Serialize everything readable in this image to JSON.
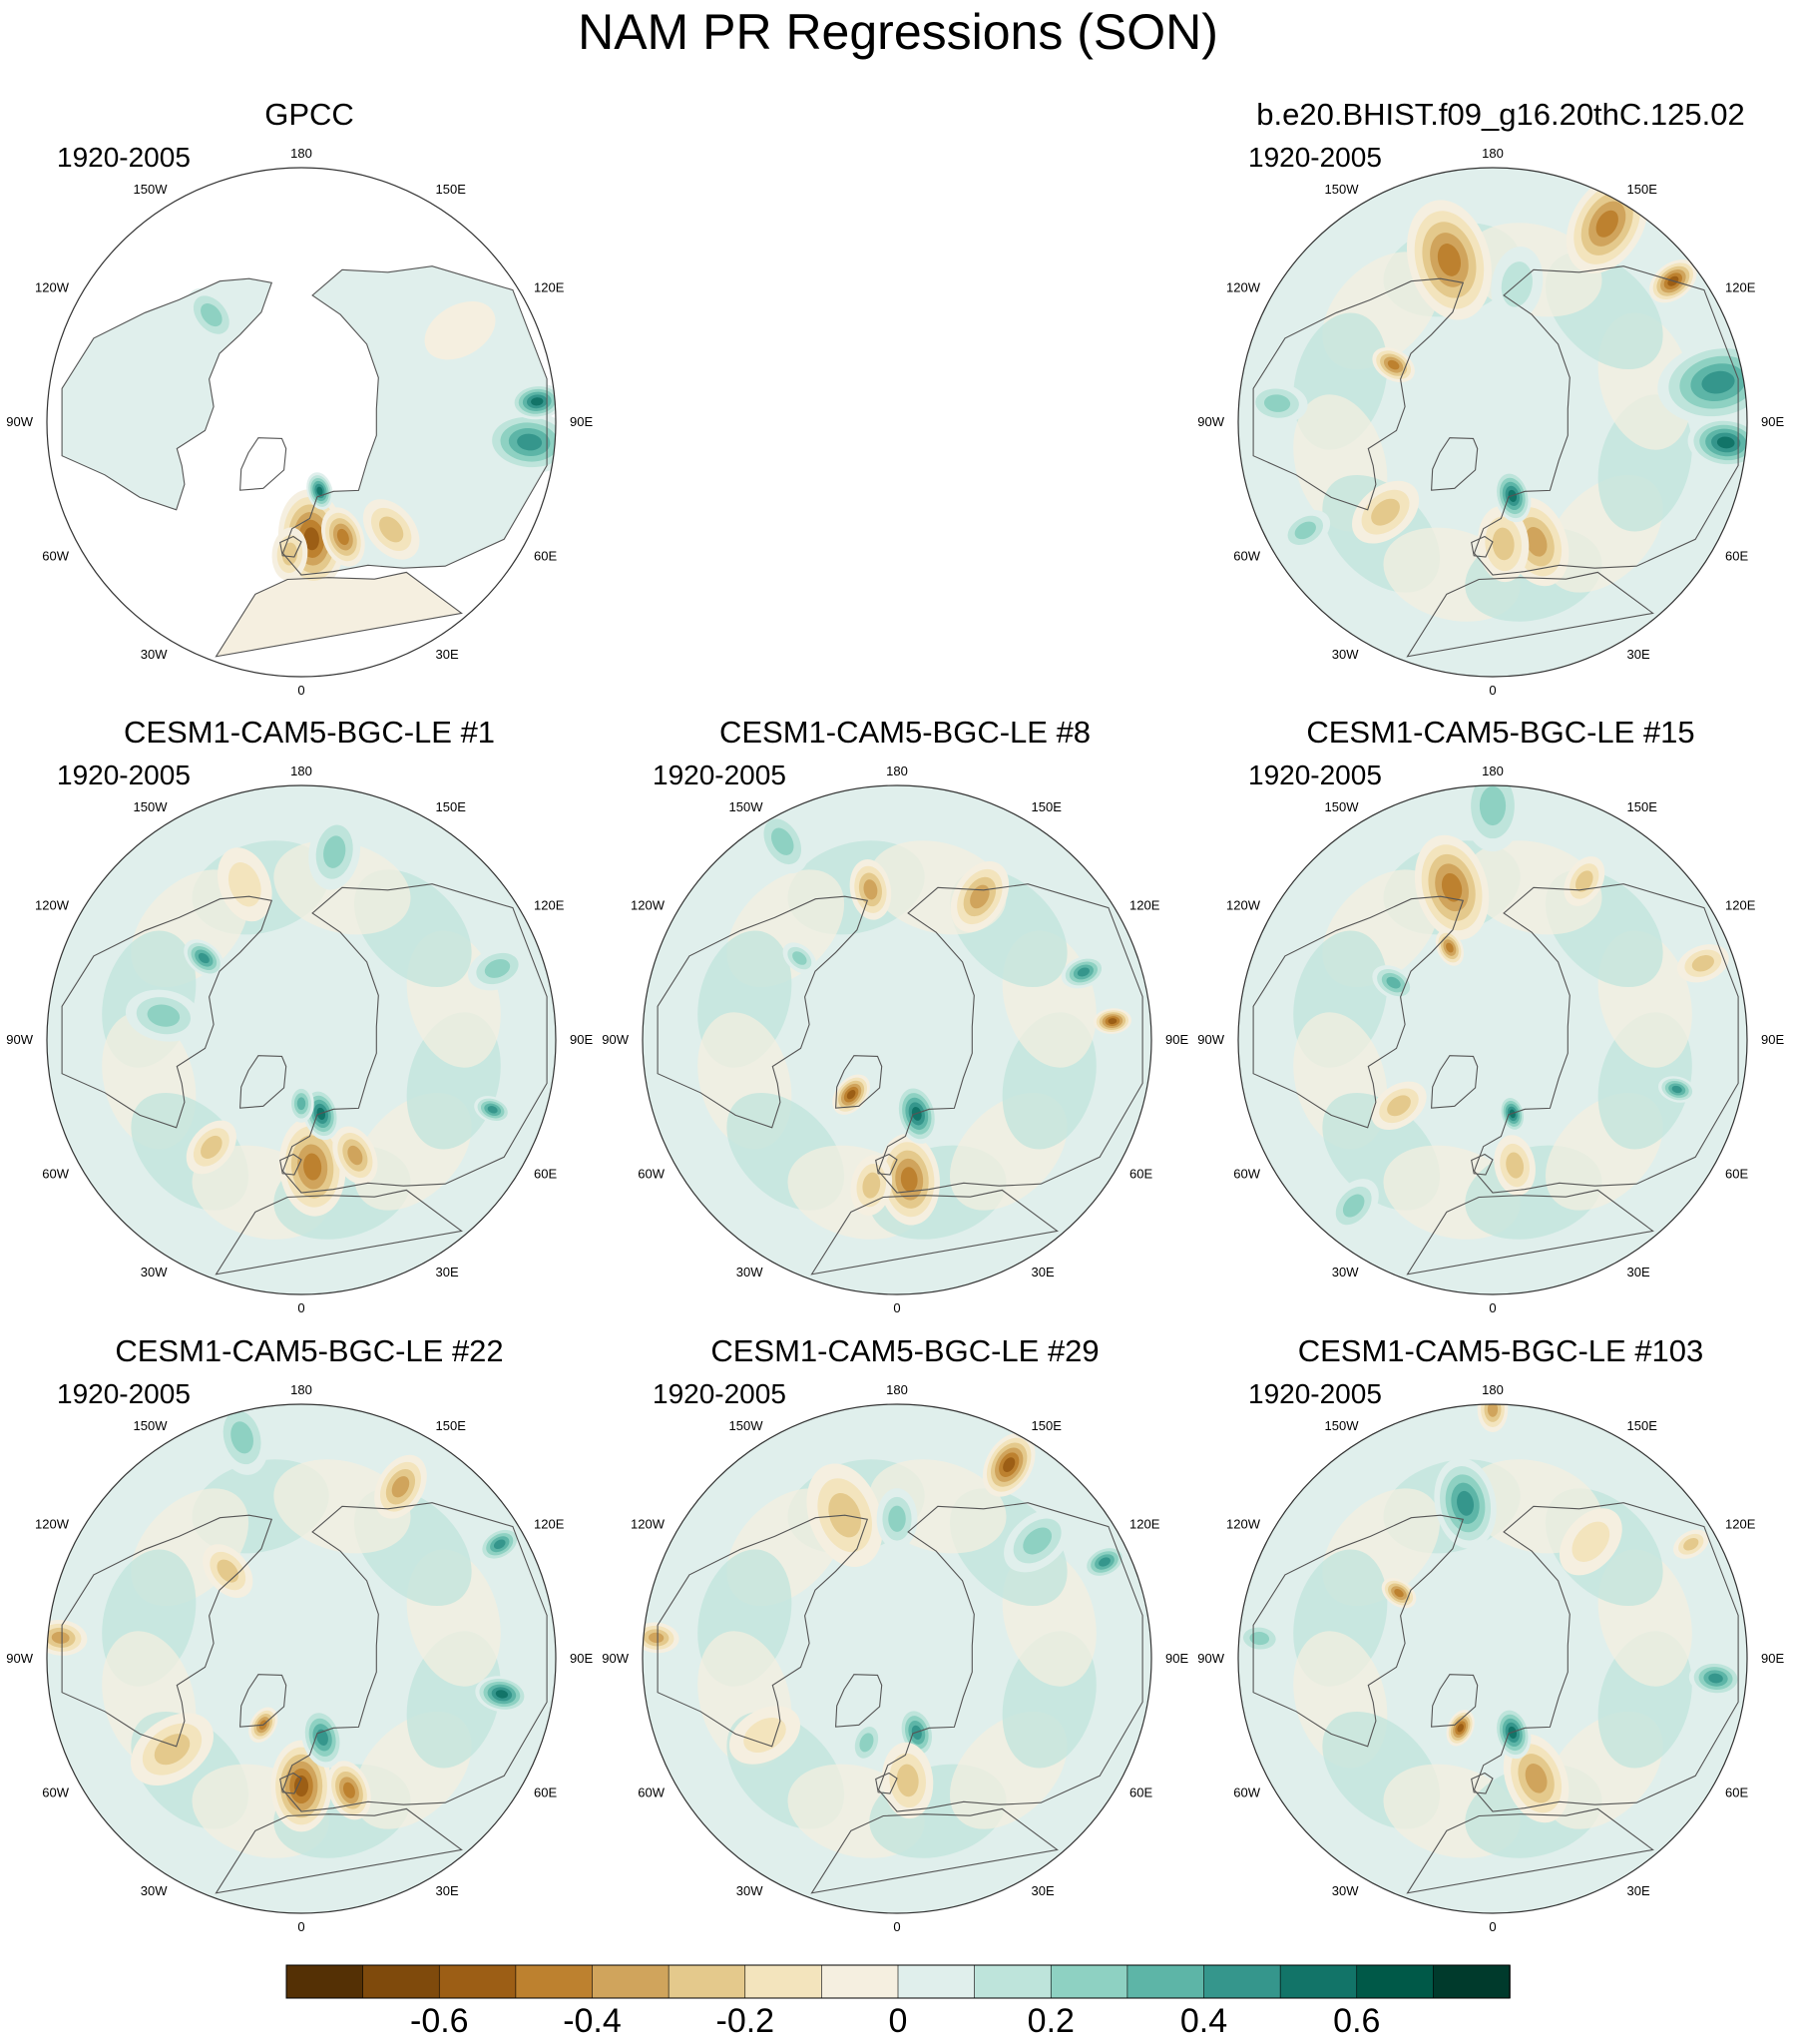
{
  "figure": {
    "title": "NAM PR Regressions (SON)"
  },
  "chart_data": {
    "type": "heatmap",
    "projection": "north-polar-stereographic",
    "grid": false,
    "legend_placement": "bottom",
    "longitude_labels": [
      "180",
      "150E",
      "120E",
      "90E",
      "60E",
      "30E",
      "0",
      "30W",
      "60W",
      "90W",
      "120W",
      "150W"
    ],
    "colorbar": {
      "levels": [
        -0.7,
        -0.6,
        -0.5,
        -0.4,
        -0.3,
        -0.2,
        -0.1,
        0,
        0.1,
        0.2,
        0.3,
        0.4,
        0.5,
        0.6,
        0.7
      ],
      "tick_labels": [
        "-0.6",
        "-0.4",
        "-0.2",
        "0",
        "0.2",
        "0.4",
        "0.6"
      ],
      "tick_values": [
        -0.6,
        -0.4,
        -0.2,
        0,
        0.2,
        0.4,
        0.6
      ],
      "colors": [
        "#543005",
        "#7f4a0c",
        "#9c5e15",
        "#bd812f",
        "#d0a45c",
        "#e4c98c",
        "#f3e4bd",
        "#f5efe0",
        "#e0efec",
        "#bee4db",
        "#8ed1c2",
        "#5db5a7",
        "#35968c",
        "#127468",
        "#005948",
        "#003a2c"
      ]
    },
    "panels": [
      {
        "id": "gpcc",
        "title": "GPCC",
        "period": "1920-2005",
        "col": 0,
        "row": 0,
        "land_only": true,
        "features": [
          {
            "lon": 5,
            "r": 0.46,
            "size": 0.13,
            "value": -0.55
          },
          {
            "lon": 20,
            "r": 0.48,
            "size": 0.08,
            "value": -0.45
          },
          {
            "lon": -5,
            "r": 0.52,
            "size": 0.07,
            "value": -0.35
          },
          {
            "lon": 15,
            "r": 0.28,
            "size": 0.05,
            "value": 0.6
          },
          {
            "lon": 85,
            "r": 0.9,
            "size": 0.12,
            "value": 0.45
          },
          {
            "lon": 95,
            "r": 0.93,
            "size": 0.07,
            "value": 0.6
          },
          {
            "lon": 40,
            "r": 0.55,
            "size": 0.09,
            "value": -0.25
          },
          {
            "lon": 120,
            "r": 0.72,
            "size": 0.1,
            "value": -0.15
          },
          {
            "lon": -100,
            "r": 0.5,
            "size": 0.1,
            "value": 0.15
          },
          {
            "lon": -140,
            "r": 0.55,
            "size": 0.08,
            "value": 0.25
          }
        ]
      },
      {
        "id": "b-e20",
        "title": "b.e20.BHIST.f09_g16.20thC.125.02",
        "period": "1920-2005",
        "col": 2,
        "row": 0,
        "features": [
          {
            "lon": -165,
            "r": 0.66,
            "size": 0.16,
            "value": -0.5
          },
          {
            "lon": 150,
            "r": 0.9,
            "size": 0.14,
            "value": -0.45
          },
          {
            "lon": 128,
            "r": 0.9,
            "size": 0.07,
            "value": -0.6
          },
          {
            "lon": 100,
            "r": 0.9,
            "size": 0.16,
            "value": 0.5
          },
          {
            "lon": 85,
            "r": 0.92,
            "size": 0.1,
            "value": 0.6
          },
          {
            "lon": 20,
            "r": 0.5,
            "size": 0.12,
            "value": -0.4
          },
          {
            "lon": 5,
            "r": 0.48,
            "size": 0.1,
            "value": -0.3
          },
          {
            "lon": 15,
            "r": 0.3,
            "size": 0.07,
            "value": 0.55
          },
          {
            "lon": -50,
            "r": 0.55,
            "size": 0.1,
            "value": -0.25
          },
          {
            "lon": -95,
            "r": 0.85,
            "size": 0.08,
            "value": 0.35
          },
          {
            "lon": -60,
            "r": 0.85,
            "size": 0.07,
            "value": 0.35
          },
          {
            "lon": 170,
            "r": 0.55,
            "size": 0.1,
            "value": 0.2
          },
          {
            "lon": -120,
            "r": 0.45,
            "size": 0.06,
            "value": -0.5
          }
        ]
      },
      {
        "id": "le-1",
        "title": "CESM1-CAM5-BGC-LE #1",
        "period": "1920-2005",
        "col": 0,
        "row": 1,
        "features": [
          {
            "lon": 5,
            "r": 0.5,
            "size": 0.13,
            "value": -0.5
          },
          {
            "lon": 25,
            "r": 0.5,
            "size": 0.08,
            "value": -0.4
          },
          {
            "lon": 15,
            "r": 0.3,
            "size": 0.07,
            "value": 0.55
          },
          {
            "lon": 0,
            "r": 0.25,
            "size": 0.05,
            "value": 0.4
          },
          {
            "lon": -100,
            "r": 0.55,
            "size": 0.1,
            "value": 0.25
          },
          {
            "lon": -130,
            "r": 0.5,
            "size": 0.06,
            "value": 0.45
          },
          {
            "lon": 170,
            "r": 0.75,
            "size": 0.1,
            "value": 0.25
          },
          {
            "lon": 110,
            "r": 0.82,
            "size": 0.08,
            "value": 0.3
          },
          {
            "lon": -40,
            "r": 0.55,
            "size": 0.08,
            "value": -0.25
          },
          {
            "lon": 70,
            "r": 0.8,
            "size": 0.05,
            "value": 0.45
          },
          {
            "lon": -160,
            "r": 0.65,
            "size": 0.1,
            "value": -0.2
          }
        ]
      },
      {
        "id": "le-8",
        "title": "CESM1-CAM5-BGC-LE #8",
        "period": "1920-2005",
        "col": 1,
        "row": 1,
        "features": [
          {
            "lon": 5,
            "r": 0.55,
            "size": 0.12,
            "value": -0.45
          },
          {
            "lon": -10,
            "r": 0.58,
            "size": 0.08,
            "value": -0.35
          },
          {
            "lon": 15,
            "r": 0.3,
            "size": 0.08,
            "value": 0.55
          },
          {
            "lon": -40,
            "r": 0.28,
            "size": 0.06,
            "value": -0.55
          },
          {
            "lon": -170,
            "r": 0.6,
            "size": 0.08,
            "value": -0.4
          },
          {
            "lon": 150,
            "r": 0.65,
            "size": 0.1,
            "value": -0.4
          },
          {
            "lon": 110,
            "r": 0.78,
            "size": 0.06,
            "value": 0.45
          },
          {
            "lon": 95,
            "r": 0.85,
            "size": 0.05,
            "value": -0.55
          },
          {
            "lon": -130,
            "r": 0.5,
            "size": 0.05,
            "value": 0.35
          },
          {
            "lon": -150,
            "r": 0.9,
            "size": 0.09,
            "value": 0.3
          }
        ]
      },
      {
        "id": "le-15",
        "title": "CESM1-CAM5-BGC-LE #15",
        "period": "1920-2005",
        "col": 2,
        "row": 1,
        "features": [
          {
            "lon": -165,
            "r": 0.62,
            "size": 0.14,
            "value": -0.45
          },
          {
            "lon": -155,
            "r": 0.4,
            "size": 0.05,
            "value": -0.5
          },
          {
            "lon": 180,
            "r": 0.92,
            "size": 0.12,
            "value": 0.3
          },
          {
            "lon": 150,
            "r": 0.72,
            "size": 0.07,
            "value": -0.3
          },
          {
            "lon": 110,
            "r": 0.88,
            "size": 0.07,
            "value": -0.35
          },
          {
            "lon": 75,
            "r": 0.75,
            "size": 0.05,
            "value": 0.45
          },
          {
            "lon": 15,
            "r": 0.3,
            "size": 0.05,
            "value": 0.55
          },
          {
            "lon": 10,
            "r": 0.5,
            "size": 0.08,
            "value": -0.25
          },
          {
            "lon": -55,
            "r": 0.45,
            "size": 0.08,
            "value": -0.3
          },
          {
            "lon": -120,
            "r": 0.45,
            "size": 0.06,
            "value": 0.4
          },
          {
            "lon": -40,
            "r": 0.85,
            "size": 0.08,
            "value": 0.25
          }
        ]
      },
      {
        "id": "le-22",
        "title": "CESM1-CAM5-BGC-LE #22",
        "period": "1920-2005",
        "col": 0,
        "row": 2,
        "features": [
          {
            "lon": 0,
            "r": 0.5,
            "size": 0.12,
            "value": -0.6
          },
          {
            "lon": 20,
            "r": 0.55,
            "size": 0.08,
            "value": -0.45
          },
          {
            "lon": 15,
            "r": 0.32,
            "size": 0.08,
            "value": 0.5
          },
          {
            "lon": -30,
            "r": 0.3,
            "size": 0.05,
            "value": -0.5
          },
          {
            "lon": -55,
            "r": 0.62,
            "size": 0.12,
            "value": -0.35
          },
          {
            "lon": -95,
            "r": 0.95,
            "size": 0.07,
            "value": -0.4
          },
          {
            "lon": 80,
            "r": 0.8,
            "size": 0.07,
            "value": 0.55
          },
          {
            "lon": 150,
            "r": 0.78,
            "size": 0.09,
            "value": -0.4
          },
          {
            "lon": -165,
            "r": 0.9,
            "size": 0.1,
            "value": 0.35
          },
          {
            "lon": 120,
            "r": 0.9,
            "size": 0.06,
            "value": 0.45
          },
          {
            "lon": -140,
            "r": 0.45,
            "size": 0.08,
            "value": -0.25
          }
        ]
      },
      {
        "id": "le-29",
        "title": "CESM1-CAM5-BGC-LE #29",
        "period": "1920-2005",
        "col": 1,
        "row": 2,
        "features": [
          {
            "lon": -160,
            "r": 0.6,
            "size": 0.14,
            "value": -0.35
          },
          {
            "lon": 150,
            "r": 0.88,
            "size": 0.09,
            "value": -0.55
          },
          {
            "lon": 130,
            "r": 0.72,
            "size": 0.1,
            "value": 0.35
          },
          {
            "lon": 115,
            "r": 0.9,
            "size": 0.06,
            "value": 0.5
          },
          {
            "lon": 15,
            "r": 0.3,
            "size": 0.07,
            "value": 0.5
          },
          {
            "lon": 5,
            "r": 0.48,
            "size": 0.1,
            "value": -0.35
          },
          {
            "lon": -95,
            "r": 0.95,
            "size": 0.06,
            "value": -0.4
          },
          {
            "lon": -20,
            "r": 0.35,
            "size": 0.06,
            "value": 0.3
          },
          {
            "lon": 180,
            "r": 0.55,
            "size": 0.08,
            "value": 0.3
          },
          {
            "lon": -60,
            "r": 0.6,
            "size": 0.1,
            "value": -0.2
          }
        ]
      },
      {
        "id": "le-103",
        "title": "CESM1-CAM5-BGC-LE #103",
        "period": "1920-2005",
        "col": 2,
        "row": 2,
        "features": [
          {
            "lon": 20,
            "r": 0.5,
            "size": 0.12,
            "value": -0.4
          },
          {
            "lon": 15,
            "r": 0.3,
            "size": 0.07,
            "value": 0.55
          },
          {
            "lon": -25,
            "r": 0.3,
            "size": 0.05,
            "value": -0.55
          },
          {
            "lon": -170,
            "r": 0.62,
            "size": 0.12,
            "value": 0.45
          },
          {
            "lon": 180,
            "r": 0.98,
            "size": 0.06,
            "value": -0.4
          },
          {
            "lon": 85,
            "r": 0.88,
            "size": 0.07,
            "value": 0.45
          },
          {
            "lon": -125,
            "r": 0.45,
            "size": 0.05,
            "value": -0.45
          },
          {
            "lon": -95,
            "r": 0.92,
            "size": 0.06,
            "value": 0.3
          },
          {
            "lon": 140,
            "r": 0.6,
            "size": 0.1,
            "value": -0.2
          },
          {
            "lon": 120,
            "r": 0.9,
            "size": 0.05,
            "value": -0.3
          }
        ]
      }
    ]
  }
}
